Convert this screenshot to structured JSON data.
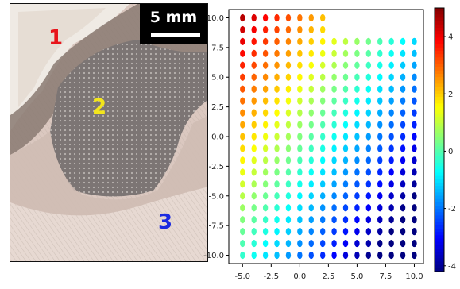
{
  "photo": {
    "scale_bar_label": "5 mm",
    "regions": [
      {
        "label": "1",
        "color": "#e8141b"
      },
      {
        "label": "2",
        "color": "#f3e51b"
      },
      {
        "label": "3",
        "color": "#1b2ae0"
      }
    ]
  },
  "chart_data": {
    "type": "scatter",
    "title": "",
    "xlabel": "",
    "ylabel": "",
    "xlim": [
      -6.2,
      10.8
    ],
    "ylim": [
      -10.7,
      10.7
    ],
    "x_ticks": [
      "-5.0",
      "-2.5",
      "0.0",
      "2.5",
      "5.0",
      "7.5",
      "10.0"
    ],
    "y_ticks": [
      "10.0",
      "7.5",
      "5.0",
      "2.5",
      "0.0",
      "-2.5",
      "-5.0",
      "-7.5",
      "-10.0"
    ],
    "grid": {
      "x_start": -5.0,
      "x_step": 1.0,
      "x_count": 16,
      "y_start": -10.0,
      "y_step": 1.0,
      "y_count": 21,
      "excluded_region": {
        "x_min": 3.0,
        "y_min": 9.0
      }
    },
    "color_value_model": {
      "intercept": 0.4,
      "x_coeff": -0.34,
      "y_coeff": 0.24
    },
    "colorbar": {
      "colormap": "jet",
      "range": [
        -4.2,
        5.0
      ],
      "ticks": [
        "4",
        "2",
        "0",
        "-2",
        "-4"
      ],
      "tick_values": [
        4,
        2,
        0,
        -2,
        -4
      ]
    }
  }
}
